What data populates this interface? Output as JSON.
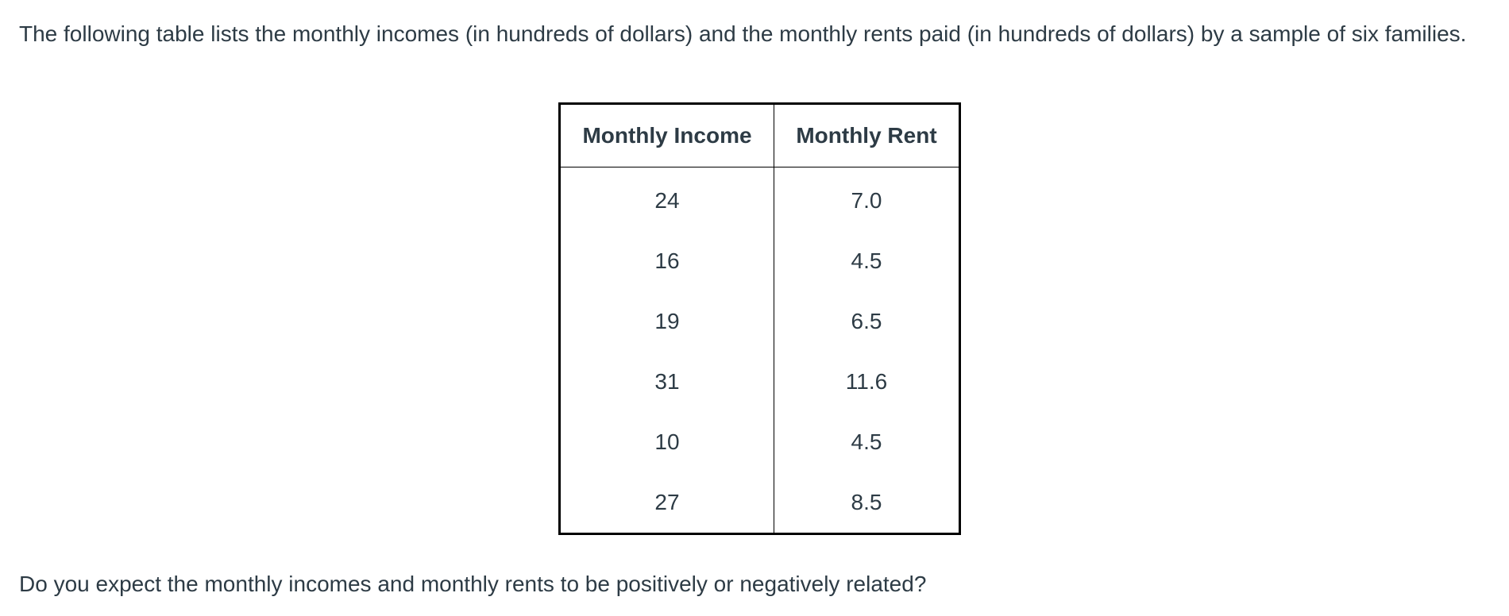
{
  "intro": "The following table lists the monthly incomes (in hundreds of dollars) and the monthly rents paid (in hundreds of dollars) by a sample of six families.",
  "table": {
    "header": [
      "Monthly Income",
      "Monthly Rent"
    ],
    "rows": [
      [
        "24",
        "7.0"
      ],
      [
        "16",
        "4.5"
      ],
      [
        "19",
        "6.5"
      ],
      [
        "31",
        "11.6"
      ],
      [
        "10",
        "4.5"
      ],
      [
        "27",
        "8.5"
      ]
    ]
  },
  "question": "Do you expect the monthly incomes and monthly rents to be positively or negatively related?"
}
